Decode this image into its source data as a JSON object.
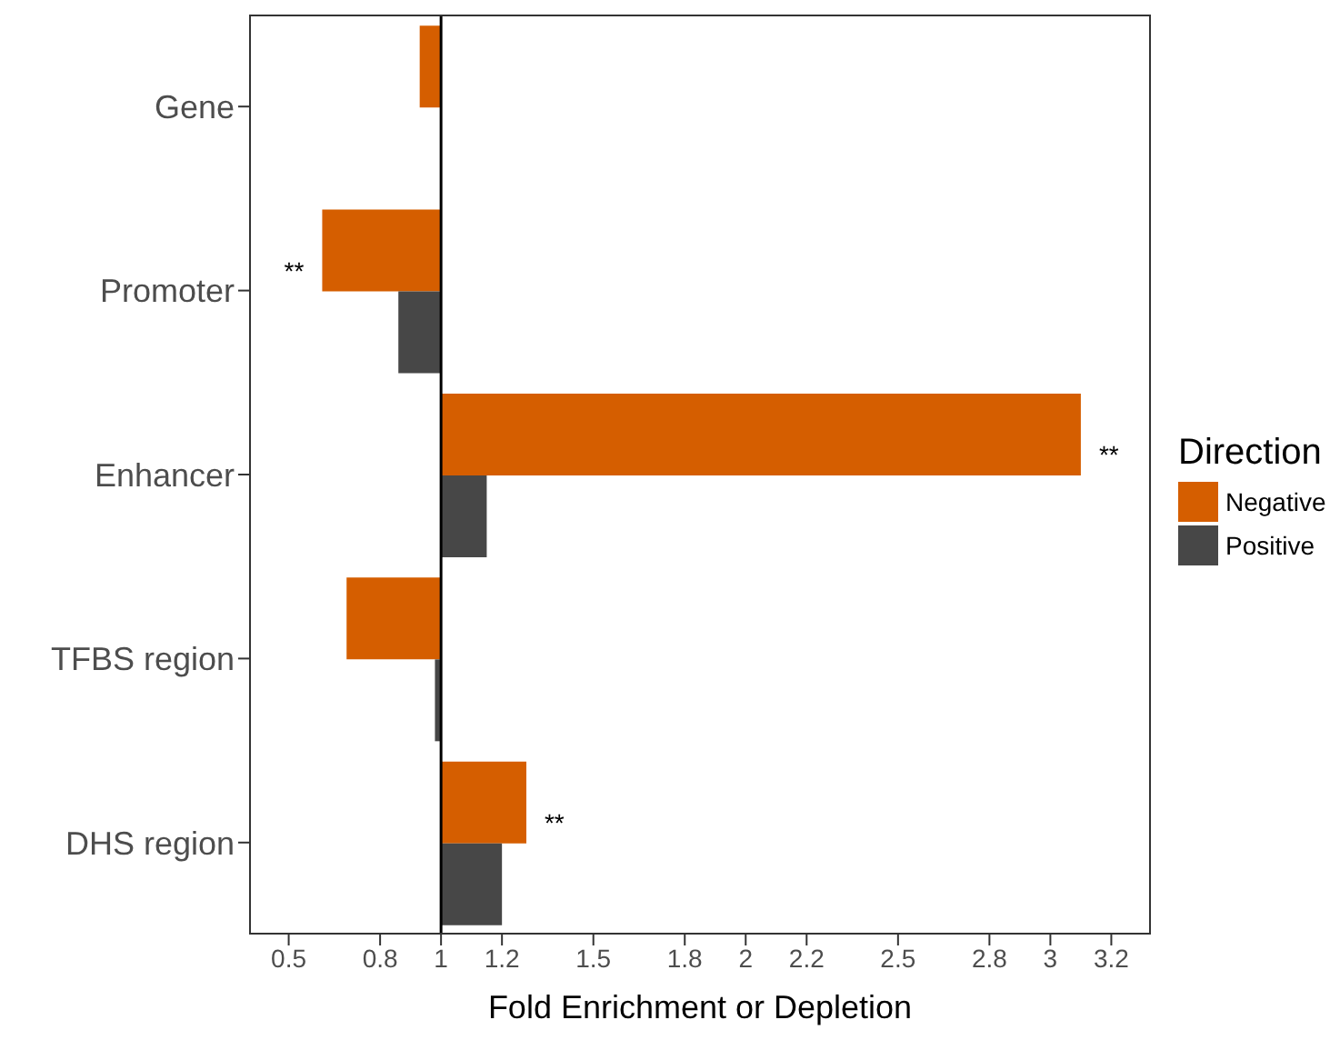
{
  "chart_data": {
    "type": "bar",
    "orientation": "horizontal",
    "xlabel": "Fold Enrichment or Depletion",
    "legend_title": "Direction",
    "legend": "right",
    "categories": [
      "Gene",
      "Promoter",
      "Enhancer",
      "TFBS region",
      "DHS region"
    ],
    "series": [
      {
        "name": "Negative",
        "color": "#d55e00",
        "base": [
          1,
          1,
          1,
          1,
          1
        ],
        "values": [
          -0.07,
          -0.39,
          2.1,
          -0.31,
          0.28
        ]
      },
      {
        "name": "Positive",
        "color": "#474747",
        "base": [
          null,
          1,
          1,
          1,
          1
        ],
        "values": [
          null,
          -0.14,
          0.15,
          -0.02,
          0.2
        ]
      }
    ],
    "xlim": [
      0.37,
      3.33
    ],
    "xticks": [
      0.5,
      0.8,
      1,
      1.2,
      1.5,
      1.8,
      2,
      2.2,
      2.5,
      2.8,
      3,
      3.2
    ],
    "ref_lines": [
      {
        "axis": "x",
        "value": 1,
        "color": "#000000"
      }
    ],
    "annotations": [
      {
        "text": "**",
        "x": 0.61,
        "y": "Promoter"
      },
      {
        "text": "**",
        "x": 3.1,
        "y": "Enhancer"
      },
      {
        "text": "**",
        "x": 1.28,
        "y": "DHS region"
      }
    ]
  }
}
